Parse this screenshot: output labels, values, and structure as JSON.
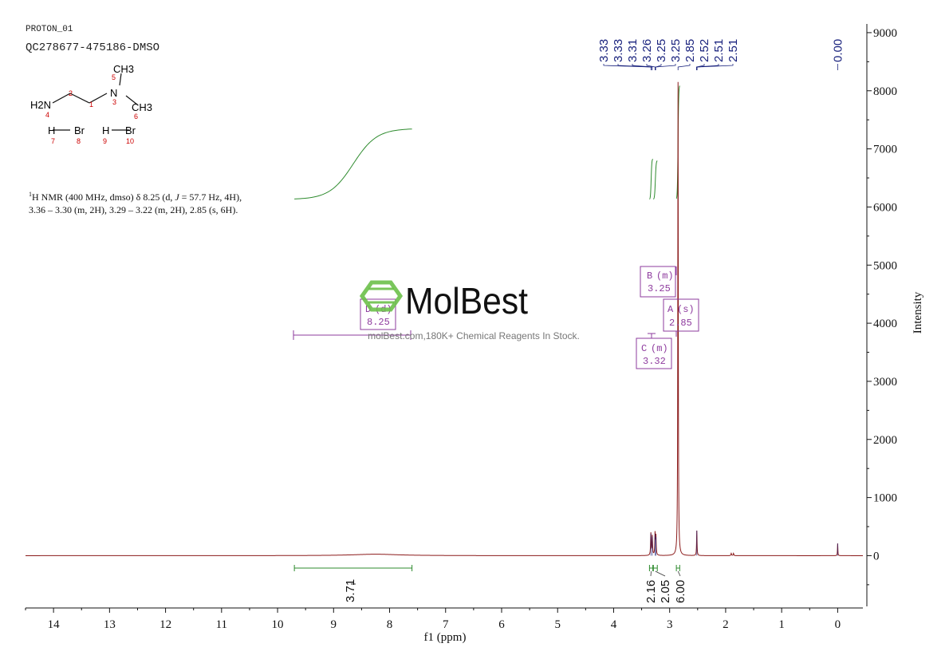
{
  "header": {
    "line1": "PROTON_01",
    "line2": "QC278677-475186-DMSO"
  },
  "structure": {
    "atoms": [
      "CH3",
      "5",
      "N",
      "3",
      "CH3",
      "6",
      "H2N",
      "4",
      "2",
      "1",
      "H",
      "Br",
      "7",
      "8",
      "H",
      "Br",
      "9",
      "10"
    ]
  },
  "description": {
    "prefix_sup": "1",
    "line1_a": "H NMR (400 MHz, dmso) δ 8.25 (d, ",
    "line1_j": "J",
    "line1_b": " = 57.7 Hz, 4H),",
    "line2": "3.36 – 3.30 (m, 2H), 3.29 – 3.22 (m, 2H), 2.85 (s, 6H)."
  },
  "watermark": {
    "brand": "MolBest",
    "tagline": "molBest.com,180K+ Chemical Reagents In Stock."
  },
  "colors": {
    "spectrum": "#8b1a1a",
    "integral": "#2e8b2e",
    "peak_label": "#1a237e",
    "multiplet": "#8e3b9e",
    "watermark": "#6cc04a"
  },
  "chart_data": {
    "type": "line",
    "title": "",
    "xlabel": "f1 (ppm)",
    "ylabel": "Intensity",
    "xlim": [
      14.5,
      -0.45
    ],
    "ylim": [
      -900,
      9150
    ],
    "x_ticks": [
      "14",
      "13",
      "12",
      "11",
      "10",
      "9",
      "8",
      "7",
      "6",
      "5",
      "4",
      "3",
      "2",
      "1",
      "0"
    ],
    "y_ticks": [
      "0",
      "1000",
      "2000",
      "3000",
      "4000",
      "5000",
      "6000",
      "7000",
      "8000",
      "9000"
    ],
    "peak_labels": [
      "3.33",
      "3.33",
      "3.31",
      "3.26",
      "3.25",
      "3.25",
      "2.85",
      "2.52",
      "2.51",
      "2.51",
      "0.00"
    ],
    "peak_positions": [
      3.33,
      3.33,
      3.31,
      3.26,
      3.25,
      3.25,
      2.85,
      2.52,
      2.51,
      2.51,
      0.0
    ],
    "peaks": [
      {
        "ppm": 3.335,
        "height": 380,
        "width": 0.006
      },
      {
        "ppm": 3.31,
        "height": 330,
        "width": 0.006
      },
      {
        "ppm": 3.26,
        "height": 370,
        "width": 0.006
      },
      {
        "ppm": 3.245,
        "height": 320,
        "width": 0.006
      },
      {
        "ppm": 2.85,
        "height": 8150,
        "width": 0.005
      },
      {
        "ppm": 2.515,
        "height": 430,
        "width": 0.005
      },
      {
        "ppm": 1.9,
        "height": 40,
        "width": 0.006
      },
      {
        "ppm": 1.86,
        "height": 40,
        "width": 0.006
      },
      {
        "ppm": 0.0,
        "height": 210,
        "width": 0.004
      },
      {
        "ppm": 8.25,
        "height": 25,
        "width": 0.5
      }
    ],
    "integrals": [
      {
        "from": 9.7,
        "to": 7.6,
        "value": "3.71"
      },
      {
        "from": 3.36,
        "to": 3.3,
        "value": "2.16"
      },
      {
        "from": 3.29,
        "to": 3.22,
        "value": "2.05"
      },
      {
        "from": 2.88,
        "to": 2.82,
        "value": "6.00"
      }
    ],
    "multiplets": [
      {
        "letter": "B",
        "type": "(m)",
        "shift": "3.25"
      },
      {
        "letter": "A",
        "type": "(s)",
        "shift": "2.85"
      },
      {
        "letter": "C",
        "type": "(m)",
        "shift": "3.32"
      },
      {
        "letter": "D",
        "type": "(d)",
        "shift": "8.25"
      }
    ]
  }
}
